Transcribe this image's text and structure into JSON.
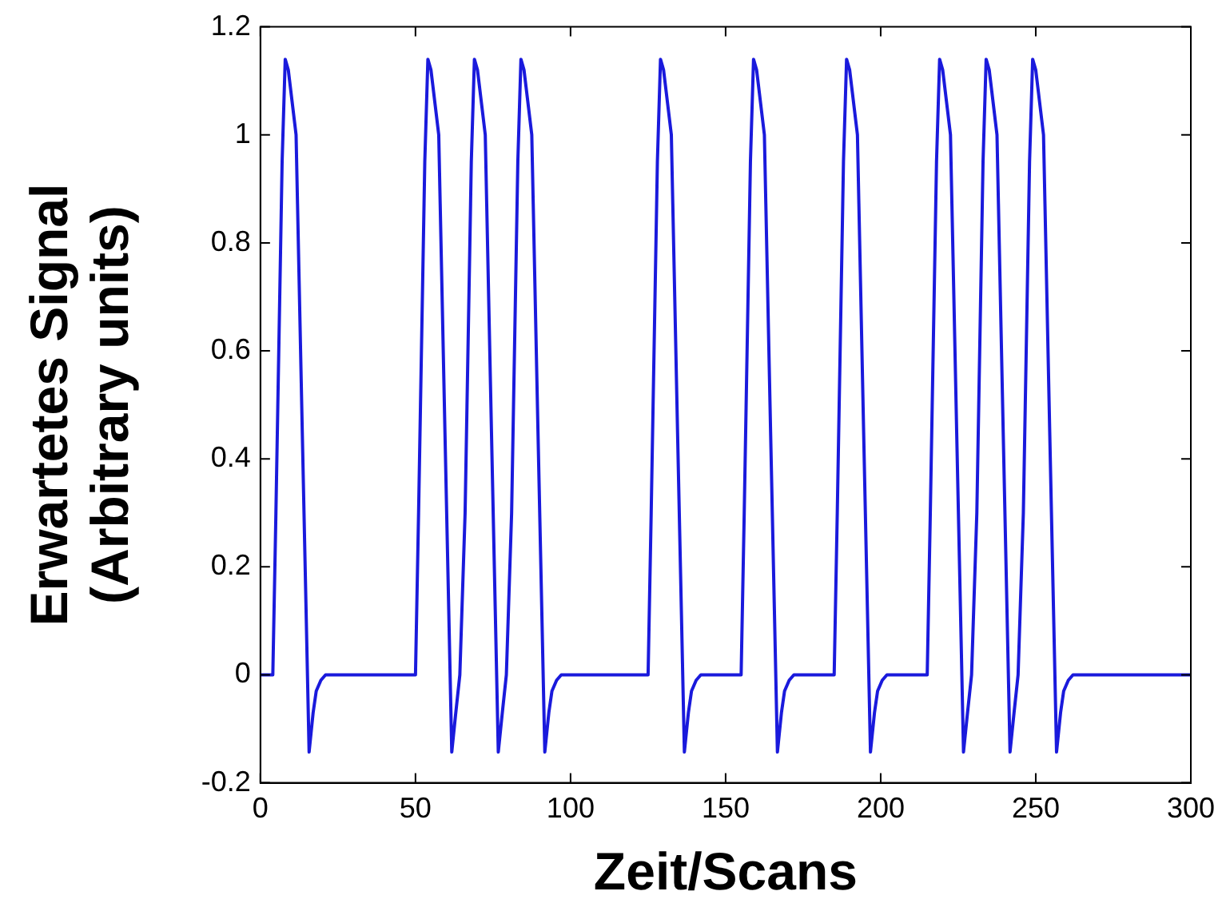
{
  "chart_data": {
    "type": "line",
    "xlabel": "Zeit/Scans",
    "ylabel": "Erwartetes Signal\n(Arbitrary units)",
    "x": [
      0,
      4,
      5,
      7,
      8,
      9,
      11.5,
      13.5,
      15.7,
      17,
      18,
      19.5,
      21,
      50,
      51,
      53,
      54,
      55,
      57.5,
      59.5,
      61.7,
      63,
      64.3,
      66,
      68,
      69,
      70,
      72.5,
      74.5,
      76.7,
      78,
      79.3,
      81,
      83,
      84,
      85,
      87.5,
      89.5,
      91.7,
      93,
      94,
      95.5,
      97,
      125,
      126,
      128,
      129,
      130,
      132.5,
      134.5,
      136.7,
      138,
      139,
      140.5,
      142,
      155,
      156,
      158,
      159,
      160,
      162.5,
      164.5,
      166.7,
      168,
      169,
      170.5,
      172,
      185,
      186,
      188,
      189,
      190,
      192.5,
      194.5,
      196.7,
      198,
      199,
      200.5,
      202,
      215,
      216,
      218,
      219,
      220,
      222.5,
      224.5,
      226.7,
      228,
      229.3,
      231,
      233,
      234,
      235,
      237.5,
      239.5,
      241.7,
      243,
      244.3,
      246,
      248,
      249,
      250,
      252.5,
      254.5,
      256.7,
      258,
      259,
      260.5,
      262,
      300
    ],
    "values": [
      0,
      0,
      0.3,
      0.95,
      1.14,
      1.12,
      1,
      0.45,
      -0.143,
      -0.07,
      -0.03,
      -0.01,
      0,
      0,
      0.3,
      0.95,
      1.14,
      1.12,
      1,
      0.45,
      -0.143,
      -0.07,
      0,
      0.3,
      0.95,
      1.14,
      1.12,
      1,
      0.45,
      -0.143,
      -0.07,
      0,
      0.3,
      0.95,
      1.14,
      1.12,
      1,
      0.45,
      -0.143,
      -0.07,
      -0.03,
      -0.01,
      0,
      0,
      0.3,
      0.95,
      1.14,
      1.12,
      1,
      0.45,
      -0.143,
      -0.07,
      -0.03,
      -0.01,
      0,
      0,
      0.3,
      0.95,
      1.14,
      1.12,
      1,
      0.45,
      -0.143,
      -0.07,
      -0.03,
      -0.01,
      0,
      0,
      0.3,
      0.95,
      1.14,
      1.12,
      1,
      0.45,
      -0.143,
      -0.07,
      -0.03,
      -0.01,
      0,
      0,
      0.3,
      0.95,
      1.14,
      1.12,
      1,
      0.45,
      -0.143,
      -0.07,
      0,
      0.3,
      0.95,
      1.14,
      1.12,
      1,
      0.45,
      -0.143,
      -0.07,
      0,
      0.3,
      0.95,
      1.14,
      1.12,
      1,
      0.45,
      -0.143,
      -0.07,
      -0.03,
      -0.01,
      0,
      0
    ],
    "color": "#1a1adc",
    "marker": "none",
    "line_style": "solid",
    "grid": false,
    "legend": false,
    "xlim": [
      0,
      300
    ],
    "xticks": [
      0,
      50,
      100,
      150,
      200,
      250,
      300
    ],
    "ylim": [
      -0.2,
      1.2
    ],
    "yticks": [
      -0.2,
      0,
      0.2,
      0.4,
      0.6,
      0.8,
      1,
      1.2
    ]
  }
}
